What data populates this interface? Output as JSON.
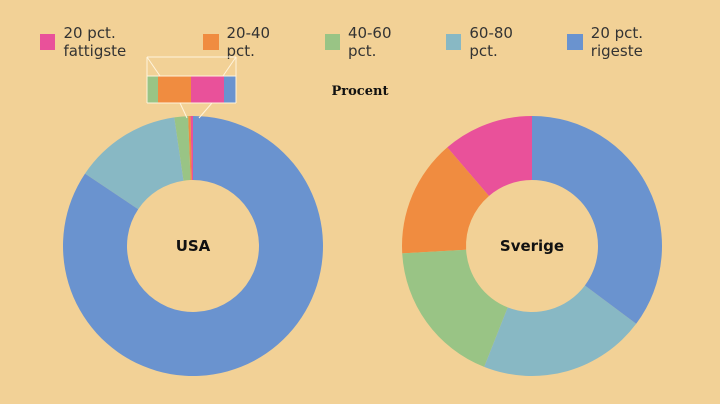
{
  "background": "#f2d196",
  "chart_data": {
    "type": "pie",
    "subtitle": "Procent",
    "legend_position": "top",
    "categories": [
      "20 pct. fattigste",
      "20-40 pct.",
      "40-60 pct.",
      "60-80 pct.",
      "20 pct. rigeste"
    ],
    "colors": [
      "#e9519a",
      "#f08c40",
      "#99c485",
      "#88b8c4",
      "#6a93cf"
    ],
    "series": [
      {
        "name": "USA",
        "values": [
          0.3,
          0.3,
          1.7,
          13.3,
          84.4
        ]
      },
      {
        "name": "Sverige",
        "values": [
          11.3,
          14.6,
          18.1,
          20.8,
          35.2
        ]
      }
    ],
    "donut": true,
    "inset_zoom": "USA"
  }
}
